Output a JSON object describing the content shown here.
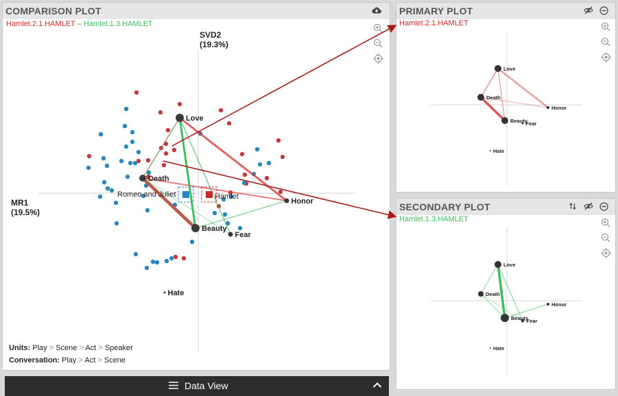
{
  "comparison": {
    "title": "COMPARISON PLOT",
    "subtitle_primary": "Hamlet.2.1.HAMLET",
    "subtitle_sep": " – ",
    "subtitle_secondary": "Hamlet.1.3.HAMLET",
    "svd_label": "SVD2",
    "svd_pct": "(19.3%)",
    "mr_label": "MR1",
    "mr_pct": "(19.5%)",
    "terms": [
      "Love",
      "Death",
      "Beauty",
      "Fear",
      "Honor",
      "Hate"
    ],
    "plays": [
      "Romeo and Juliet",
      "Hamlet"
    ],
    "units_label": "Units:",
    "units_path": [
      "Play",
      "Scene",
      "Act",
      "Speaker"
    ],
    "conv_label": "Conversation:",
    "conv_path": [
      "Play",
      "Act",
      "Scene"
    ],
    "path_sep": ">"
  },
  "primary": {
    "title": "PRIMARY PLOT",
    "subtitle": "Hamlet.2.1.HAMLET",
    "terms": [
      "Love",
      "Death",
      "Beauty",
      "Fear",
      "Honor",
      "Hate"
    ]
  },
  "secondary": {
    "title": "SECONDARY PLOT",
    "subtitle": "Hamlet.1.3.HAMLET",
    "terms": [
      "Love",
      "Death",
      "Beauty",
      "Fear",
      "Honor",
      "Hate"
    ]
  },
  "dataview": {
    "label": "Data View"
  },
  "icons": {
    "cloud": "cloud-download-icon",
    "hide": "eye-slash-icon",
    "minimize": "minus-circle-icon",
    "swap": "swap-icon",
    "zoom_in": "zoom-in-icon",
    "zoom_out": "zoom-out-icon",
    "center": "crosshair-icon",
    "menu": "menu-icon",
    "chevron": "chevron-up-icon"
  },
  "colors": {
    "red": "#cc2a2a",
    "green": "#3cbf5c",
    "blue": "#2a86c0",
    "arrow": "#a81c1c"
  }
}
